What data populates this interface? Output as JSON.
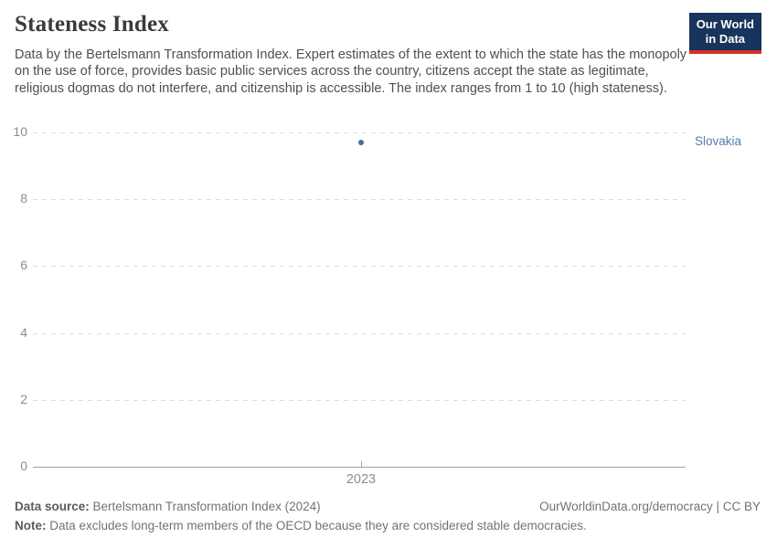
{
  "header": {
    "title": "Stateness Index",
    "subtitle": "Data by the Bertelsmann Transformation Index. Expert estimates of the extent to which the state has the monopoly on the use of force, provides basic public services across the country, citizens accept the state as legitimate, religious dogmas do not interfere, and citizenship is accessible. The index ranges from 1 to 10 (high stateness)."
  },
  "logo": {
    "line1": "Our World",
    "line2": "in Data",
    "bg_color": "#19345c",
    "accent_color": "#d5302b"
  },
  "chart_data": {
    "type": "scatter",
    "title": "Stateness Index",
    "x": [
      2023
    ],
    "series": [
      {
        "name": "Slovakia",
        "values": [
          9.7
        ],
        "color": "#4c6a9c",
        "label_color": "#577dab"
      }
    ],
    "xlabel": "",
    "ylabel": "",
    "ylim": [
      0,
      10
    ],
    "yticks": [
      0,
      2,
      4,
      6,
      8,
      10
    ],
    "xtick_labels": [
      "2023"
    ],
    "grid": "horizontal-dashed",
    "legend_position": "right-of-point"
  },
  "footer": {
    "data_source_label": "Data source:",
    "data_source_value": "Bertelsmann Transformation Index (2024)",
    "attribution": "OurWorldinData.org/democracy | CC BY",
    "note_label": "Note:",
    "note_value": "Data excludes long-term members of the OECD because they are considered stable democracies."
  }
}
